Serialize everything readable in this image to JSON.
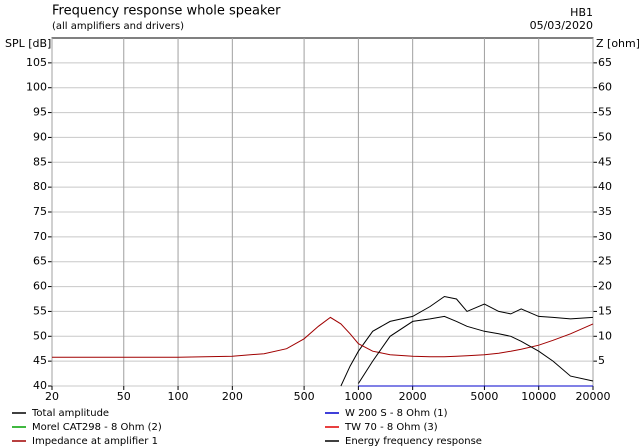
{
  "chart_data": {
    "type": "line",
    "title": "Frequency response whole speaker",
    "subtitle": "(all amplifiers and drivers)",
    "project": "HB1",
    "date": "05/03/2020",
    "y_label": "SPL [dB]",
    "y2_label": "Z [ohm]",
    "xlog": true,
    "grid": true,
    "x": [
      20,
      50,
      100,
      200,
      300,
      400,
      500,
      600,
      700,
      800,
      900,
      1000,
      1200,
      1500,
      2000,
      2500,
      3000,
      3500,
      4000,
      5000,
      6000,
      7000,
      8000,
      10000,
      12000,
      15000,
      20000
    ],
    "xlim": [
      20,
      20000
    ],
    "xticks": [
      20,
      50,
      100,
      200,
      500,
      1000,
      2000,
      5000,
      10000,
      20000
    ],
    "ylim": [
      40,
      110
    ],
    "yticks": [
      40,
      45,
      50,
      55,
      60,
      65,
      70,
      75,
      80,
      85,
      90,
      95,
      100,
      105
    ],
    "y2lim": [
      0,
      70
    ],
    "y2ticks": [
      5,
      10,
      15,
      20,
      25,
      30,
      35,
      40,
      45,
      50,
      55,
      60,
      65
    ],
    "series": [
      {
        "name": "Total amplitude",
        "color": "#000000",
        "values": [
          null,
          null,
          null,
          null,
          null,
          null,
          null,
          null,
          null,
          40,
          44,
          47,
          51,
          53,
          54,
          56,
          58,
          57.5,
          55,
          56.5,
          55,
          54.5,
          55.5,
          54,
          53.8,
          53.5,
          53.8
        ]
      },
      {
        "name": "W 200 S - 8 Ohm (1)",
        "color": "#0000cc",
        "values": [
          null,
          null,
          null,
          null,
          null,
          null,
          null,
          null,
          null,
          null,
          null,
          40,
          40,
          40,
          40,
          40,
          40,
          40,
          40,
          40,
          40,
          40,
          40,
          40,
          40,
          40,
          40
        ]
      },
      {
        "name": "Morel CAT298 - 8 Ohm (2)",
        "color": "#00a000",
        "values": [
          null,
          null,
          null,
          null,
          null,
          null,
          null,
          null,
          null,
          null,
          null,
          null,
          null,
          null,
          null,
          null,
          null,
          null,
          null,
          null,
          null,
          null,
          null,
          null,
          null,
          null,
          null
        ]
      },
      {
        "name": "TW 70 - 8 Ohm (3)",
        "color": "#e00000",
        "values": [
          null,
          null,
          null,
          null,
          null,
          null,
          null,
          null,
          null,
          null,
          null,
          null,
          null,
          null,
          null,
          null,
          null,
          null,
          null,
          null,
          null,
          null,
          null,
          null,
          null,
          null,
          null
        ]
      },
      {
        "name": "Impedance at amplifier 1",
        "color": "#a00000",
        "axis": "y2",
        "values": [
          5.8,
          5.8,
          5.8,
          6,
          6.5,
          7.5,
          9.5,
          12,
          13.8,
          12.5,
          10.5,
          8.5,
          7,
          6.3,
          6,
          5.9,
          5.9,
          6,
          6.1,
          6.3,
          6.6,
          7,
          7.4,
          8.2,
          9.2,
          10.5,
          12.5
        ]
      },
      {
        "name": "Energy frequency response",
        "color": "#000000",
        "values": [
          null,
          null,
          null,
          null,
          null,
          null,
          null,
          null,
          null,
          null,
          null,
          40.5,
          45,
          50,
          53,
          53.5,
          54,
          53,
          52,
          51,
          50.5,
          50,
          49,
          47,
          45,
          42,
          41
        ]
      }
    ]
  }
}
